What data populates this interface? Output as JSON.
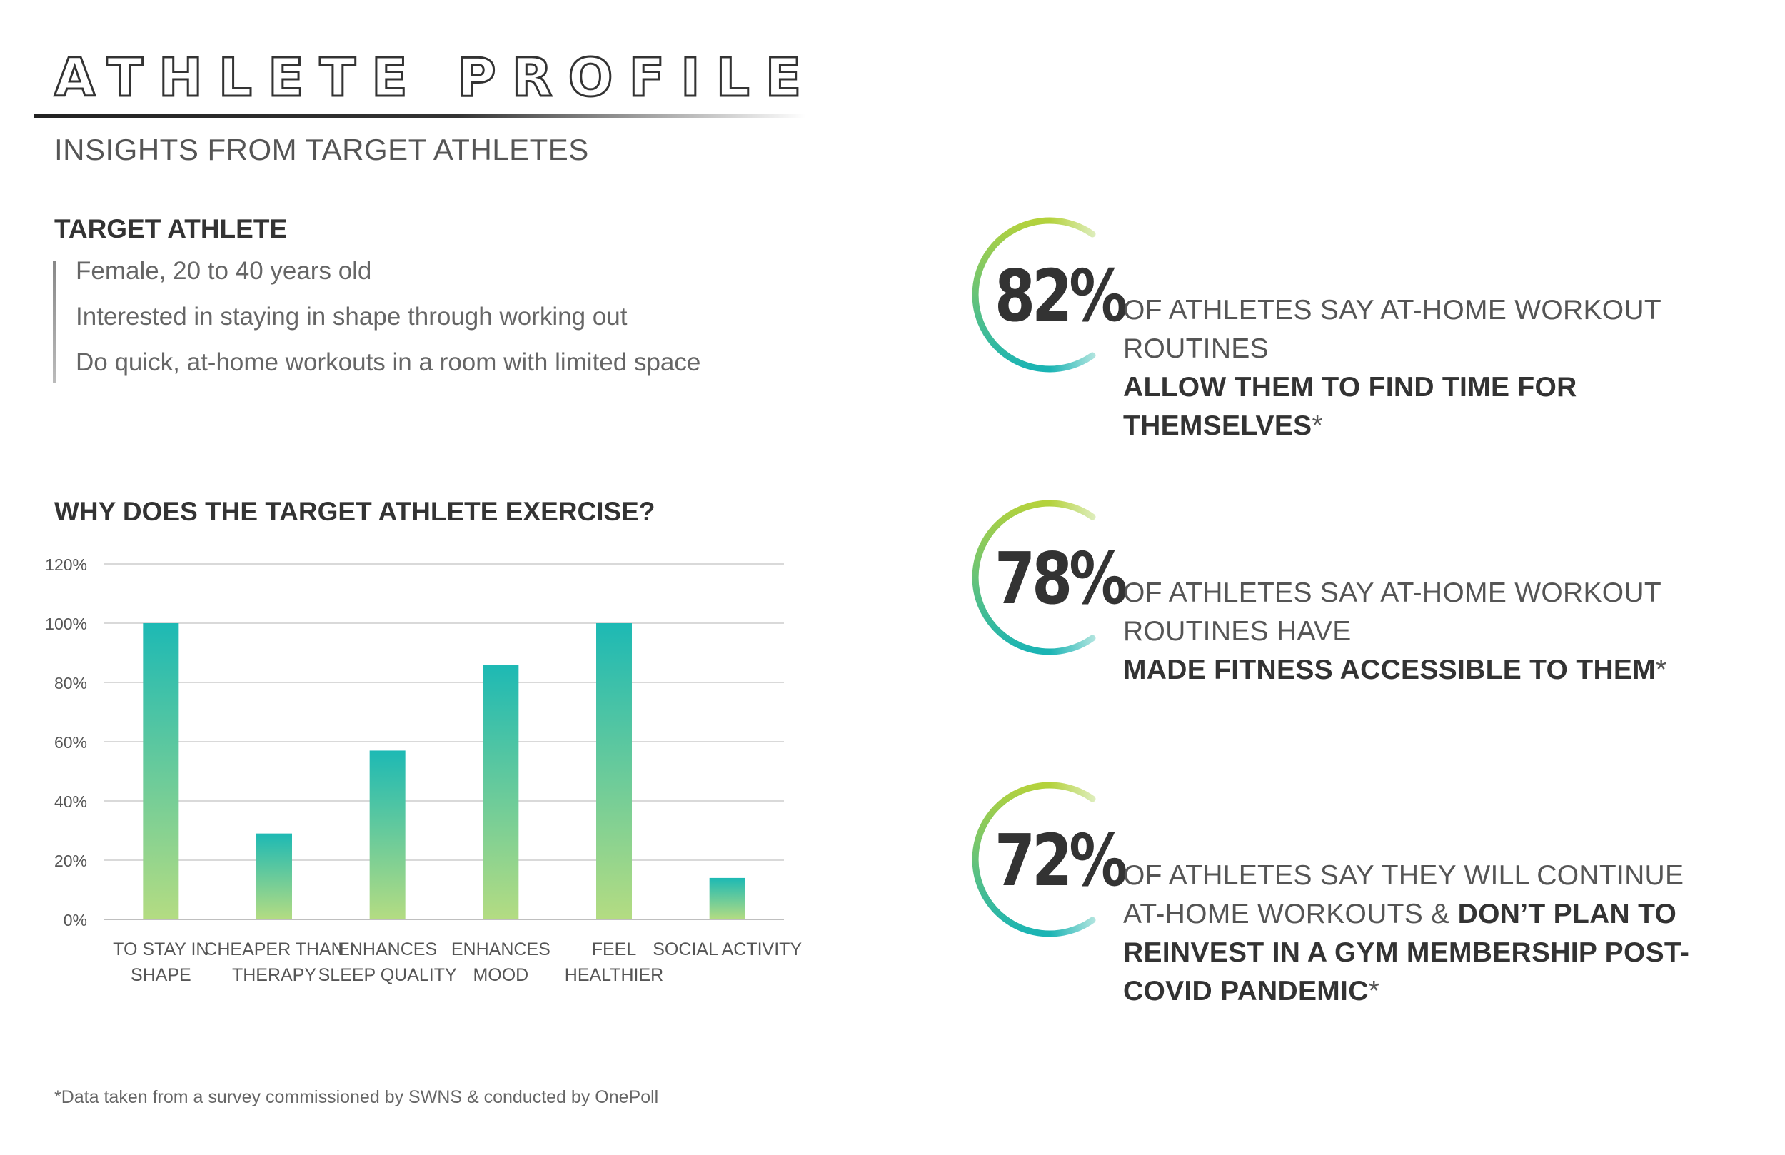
{
  "header": {
    "title": "ATHLETE PROFILE",
    "subtitle": "INSIGHTS FROM TARGET ATHLETES"
  },
  "target_athlete": {
    "heading": "TARGET ATHLETE",
    "items": [
      "Female, 20 to 40 years old",
      "Interested in staying in shape through working out",
      "Do quick, at-home workouts in a room with limited space"
    ]
  },
  "chart_section": {
    "heading": "WHY DOES THE TARGET ATHLETE EXERCISE?"
  },
  "chart_data": {
    "type": "bar",
    "title": "WHY DOES THE TARGET ATHLETE EXERCISE?",
    "categories": [
      [
        "TO STAY IN",
        "SHAPE"
      ],
      [
        "CHEAPER THAN",
        "THERAPY"
      ],
      [
        "ENHANCES",
        "SLEEP QUALITY"
      ],
      [
        "ENHANCES",
        "MOOD"
      ],
      [
        "FEEL",
        "HEALTHIER"
      ],
      [
        "SOCIAL ACTIVITY"
      ]
    ],
    "values": [
      100,
      29,
      57,
      86,
      100,
      14
    ],
    "ylim": [
      0,
      120
    ],
    "yticks": [
      0,
      20,
      40,
      60,
      80,
      100,
      120
    ],
    "ytick_labels": [
      "0%",
      "20%",
      "40%",
      "60%",
      "80%",
      "100%",
      "120%"
    ],
    "grid": true,
    "colors": {
      "bar_top": "#1db9b4",
      "bar_bottom": "#b4dc82",
      "grid": "#d9d9d9",
      "axis": "#bfbfbf"
    }
  },
  "stats": [
    {
      "percent": "82%",
      "text_regular": "OF ATHLETES SAY AT-HOME WORKOUT ROUTINES",
      "text_bold": "ALLOW THEM TO FIND TIME FOR THEMSELVES",
      "text_suffix": "*"
    },
    {
      "percent": "78%",
      "text_regular": "OF ATHLETES SAY AT-HOME WORKOUT ROUTINES HAVE",
      "text_bold": "MADE FITNESS ACCESSIBLE TO THEM",
      "text_suffix": "*"
    },
    {
      "percent": "72%",
      "text_regular": "OF ATHLETES SAY THEY WILL CONTINUE AT-HOME WORKOUTS &",
      "text_bold": "DON’T PLAN TO REINVEST IN A GYM MEMBERSHIP POST-COVID PANDEMIC",
      "text_suffix": "*"
    }
  ],
  "ring_colors": {
    "start": "#b4d23c",
    "end": "#1ab4b4"
  },
  "footnote": "*Data taken from a survey commissioned by SWNS & conducted by OnePoll"
}
